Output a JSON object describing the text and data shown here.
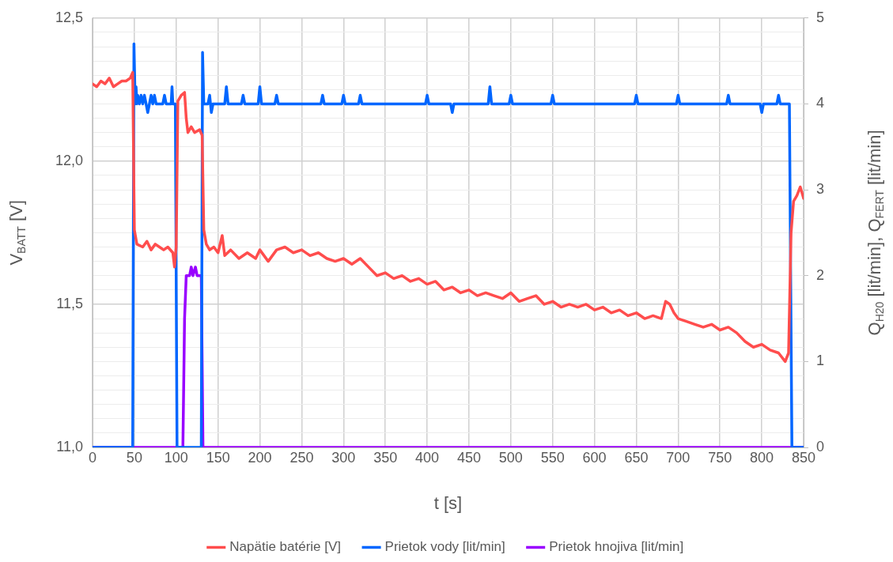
{
  "chart_data": {
    "type": "line",
    "xlabel": "t [s]",
    "ylabel": "V$_{BATT}$ [V]",
    "y2label": "Q$_{H20}$ [lit/min], Q$_{FERT}$ [lit/min]",
    "xlim": [
      0,
      850
    ],
    "xticks": [
      0,
      50,
      100,
      150,
      200,
      250,
      300,
      350,
      400,
      450,
      500,
      550,
      600,
      650,
      700,
      750,
      800,
      850
    ],
    "ylim": [
      11,
      12.5
    ],
    "yticks": [
      {
        "value": 11,
        "label": "11,0"
      },
      {
        "value": 11.05,
        "label": null
      },
      {
        "value": 11.1,
        "label": null
      },
      {
        "value": 11.15,
        "label": null
      },
      {
        "value": 11.2,
        "label": null
      },
      {
        "value": 11.25,
        "label": null
      },
      {
        "value": 11.3,
        "label": null
      },
      {
        "value": 11.35,
        "label": null
      },
      {
        "value": 11.4,
        "label": null
      },
      {
        "value": 11.45,
        "label": null
      },
      {
        "value": 11.5,
        "label": "11,5"
      },
      {
        "value": 11.55,
        "label": null
      },
      {
        "value": 11.6,
        "label": null
      },
      {
        "value": 11.65,
        "label": null
      },
      {
        "value": 11.7,
        "label": null
      },
      {
        "value": 11.75,
        "label": null
      },
      {
        "value": 11.8,
        "label": null
      },
      {
        "value": 11.85,
        "label": null
      },
      {
        "value": 11.9,
        "label": null
      },
      {
        "value": 11.95,
        "label": null
      },
      {
        "value": 12,
        "label": "12,0"
      },
      {
        "value": 12.05,
        "label": null
      },
      {
        "value": 12.1,
        "label": null
      },
      {
        "value": 12.15,
        "label": null
      },
      {
        "value": 12.2,
        "label": null
      },
      {
        "value": 12.25,
        "label": null
      },
      {
        "value": 12.3,
        "label": null
      },
      {
        "value": 12.35,
        "label": null
      },
      {
        "value": 12.4,
        "label": null
      },
      {
        "value": 12.45,
        "label": null
      },
      {
        "value": 12.5,
        "label": "12,5"
      }
    ],
    "y2lim": [
      0,
      5
    ],
    "y2ticks": [
      0,
      1,
      2,
      3,
      4,
      5
    ],
    "grid": true,
    "legend": "bottom",
    "marker": "none",
    "line_style": "solid",
    "series": [
      {
        "name": "Napätie batérie [V]",
        "color": "#ff4d4d",
        "x": [
          0,
          5,
          10,
          15,
          20,
          25,
          30,
          35,
          40,
          45,
          48,
          50,
          53,
          60,
          65,
          70,
          75,
          80,
          85,
          90,
          96,
          98,
          100,
          102,
          106,
          110,
          112,
          114,
          118,
          122,
          128,
          131,
          133,
          136,
          140,
          145,
          150,
          155,
          158,
          165,
          175,
          185,
          195,
          200,
          210,
          220,
          230,
          240,
          250,
          260,
          270,
          280,
          290,
          300,
          310,
          320,
          330,
          340,
          350,
          360,
          370,
          380,
          390,
          400,
          410,
          420,
          430,
          440,
          450,
          460,
          470,
          480,
          490,
          500,
          510,
          520,
          530,
          540,
          550,
          560,
          570,
          580,
          590,
          600,
          610,
          620,
          630,
          640,
          650,
          660,
          670,
          680,
          685,
          690,
          695,
          700,
          710,
          720,
          730,
          740,
          750,
          760,
          770,
          780,
          790,
          800,
          810,
          820,
          828,
          832,
          835,
          838,
          842,
          846,
          850
        ],
        "values": [
          12.27,
          12.26,
          12.28,
          12.27,
          12.29,
          12.26,
          12.27,
          12.28,
          12.28,
          12.29,
          12.31,
          11.76,
          11.71,
          11.7,
          11.72,
          11.69,
          11.71,
          11.7,
          11.69,
          11.7,
          11.68,
          11.63,
          11.7,
          12.21,
          12.23,
          12.24,
          12.15,
          12.1,
          12.12,
          12.1,
          12.11,
          12.09,
          11.76,
          11.71,
          11.69,
          11.7,
          11.68,
          11.74,
          11.67,
          11.69,
          11.66,
          11.68,
          11.66,
          11.69,
          11.65,
          11.69,
          11.7,
          11.68,
          11.69,
          11.67,
          11.68,
          11.66,
          11.65,
          11.66,
          11.64,
          11.66,
          11.63,
          11.6,
          11.61,
          11.59,
          11.6,
          11.58,
          11.59,
          11.57,
          11.58,
          11.55,
          11.56,
          11.54,
          11.55,
          11.53,
          11.54,
          11.53,
          11.52,
          11.54,
          11.51,
          11.52,
          11.53,
          11.5,
          11.51,
          11.49,
          11.5,
          11.49,
          11.5,
          11.48,
          11.49,
          11.47,
          11.48,
          11.46,
          11.47,
          11.45,
          11.46,
          11.45,
          11.51,
          11.5,
          11.47,
          11.45,
          11.44,
          11.43,
          11.42,
          11.43,
          11.41,
          11.42,
          11.4,
          11.37,
          11.35,
          11.36,
          11.34,
          11.33,
          11.3,
          11.33,
          11.75,
          11.86,
          11.88,
          11.91,
          11.87
        ]
      },
      {
        "name": "Prietok vody [lit/min]",
        "color": "#0066ff",
        "axis": "y2",
        "x": [
          0,
          48,
          49.5,
          51,
          52,
          53,
          54,
          56,
          58,
          60,
          62,
          64,
          66,
          68,
          70,
          72,
          74,
          76,
          78,
          84,
          86,
          88,
          94,
          95,
          96,
          99,
          101,
          130,
          131.5,
          133,
          138,
          140,
          142,
          144,
          158,
          160,
          162,
          178,
          180,
          182,
          198,
          200,
          202,
          218,
          220,
          222,
          273,
          275,
          277,
          298,
          300,
          302,
          318,
          320,
          322,
          398,
          400,
          402,
          428,
          430,
          432,
          473,
          475,
          477,
          498,
          500,
          502,
          548,
          550,
          552,
          648,
          650,
          652,
          698,
          700,
          702,
          758,
          760,
          762,
          798,
          800,
          802,
          818,
          820,
          822,
          833,
          836,
          850
        ],
        "values": [
          0,
          0,
          4.7,
          4,
          4.2,
          4,
          4.1,
          4,
          4.1,
          4,
          4.1,
          4,
          3.9,
          4,
          4.1,
          4,
          4.1,
          4,
          4,
          4,
          4.1,
          4,
          4,
          4.2,
          4,
          4,
          0,
          0,
          4.6,
          4,
          4,
          4.1,
          3.9,
          4,
          4,
          4.2,
          4,
          4,
          4.1,
          4,
          4,
          4.2,
          4,
          4,
          4.1,
          4,
          4,
          4.1,
          4,
          4,
          4.1,
          4,
          4,
          4.1,
          4,
          4,
          4.1,
          4,
          4,
          3.9,
          4,
          4,
          4.2,
          4,
          4,
          4.1,
          4,
          4,
          4.1,
          4,
          4,
          4.1,
          4,
          4,
          4.1,
          4,
          4,
          4.1,
          4,
          4,
          3.9,
          4,
          4,
          4.1,
          4,
          4,
          0,
          0
        ]
      },
      {
        "name": "Prietok hnojiva [lit/min]",
        "color": "#9900ff",
        "axis": "y2",
        "x": [
          0,
          108,
          110,
          112,
          116,
          118,
          120,
          123,
          125,
          128,
          130,
          132,
          850
        ],
        "values": [
          0,
          0,
          1.5,
          2,
          2,
          2.1,
          2,
          2.1,
          2,
          2,
          2,
          0,
          0
        ]
      }
    ]
  }
}
